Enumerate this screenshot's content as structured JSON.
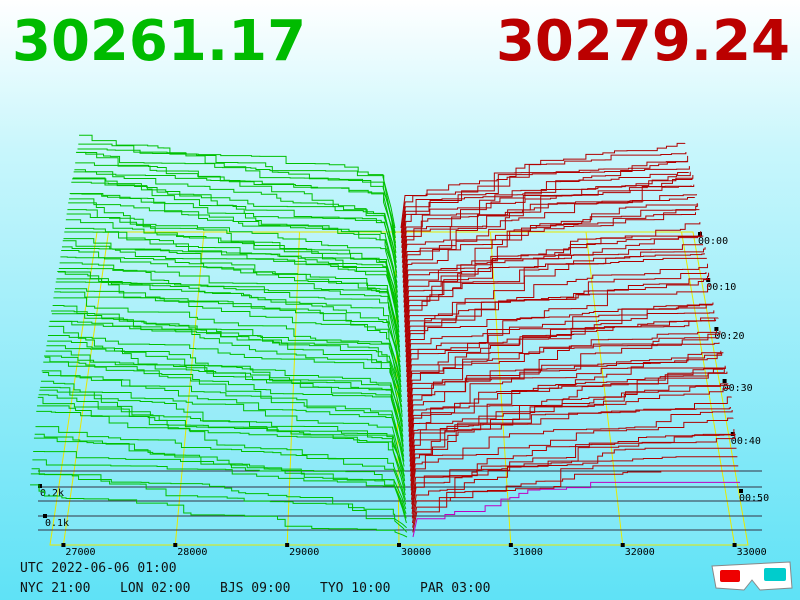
{
  "bid": "30261.17",
  "ask": "30279.24",
  "price_axis": [
    "27000",
    "28000",
    "29000",
    "30000",
    "31000",
    "32000",
    "33000"
  ],
  "time_axis": [
    "00:00",
    "00:10",
    "00:20",
    "00:30",
    "00:40",
    "00:50"
  ],
  "depth_axis": [
    "0.2k",
    "0.1k"
  ],
  "clock": {
    "utc": "UTC 2022-06-06 01:00",
    "zones": [
      "NYC 21:00",
      "LON 02:00",
      "BJS 09:00",
      "TYO 10:00",
      "PAR 03:00"
    ]
  }
}
